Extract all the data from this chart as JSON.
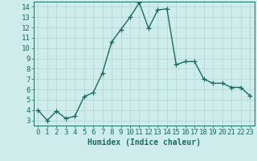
{
  "x": [
    0,
    1,
    2,
    3,
    4,
    5,
    6,
    7,
    8,
    9,
    10,
    11,
    12,
    13,
    14,
    15,
    16,
    17,
    18,
    19,
    20,
    21,
    22,
    23
  ],
  "y": [
    4.0,
    3.0,
    3.9,
    3.2,
    3.4,
    5.3,
    5.7,
    7.6,
    10.6,
    11.8,
    13.0,
    14.4,
    11.9,
    13.7,
    13.8,
    8.4,
    8.7,
    8.7,
    7.0,
    6.6,
    6.6,
    6.2,
    6.2,
    5.4
  ],
  "line_color": "#1a6b5e",
  "marker": "+",
  "marker_size": 4,
  "line_width": 1.0,
  "bg_color": "#ceecea",
  "grid_color": "#b0d4d0",
  "xlabel": "Humidex (Indice chaleur)",
  "xlim": [
    -0.5,
    23.5
  ],
  "ylim": [
    2.5,
    14.5
  ],
  "yticks": [
    3,
    4,
    5,
    6,
    7,
    8,
    9,
    10,
    11,
    12,
    13,
    14
  ],
  "xticks": [
    0,
    1,
    2,
    3,
    4,
    5,
    6,
    7,
    8,
    9,
    10,
    11,
    12,
    13,
    14,
    15,
    16,
    17,
    18,
    19,
    20,
    21,
    22,
    23
  ],
  "tick_color": "#1a6b5e",
  "label_color": "#1a6b5e",
  "xlabel_fontsize": 7,
  "tick_fontsize": 6.5
}
